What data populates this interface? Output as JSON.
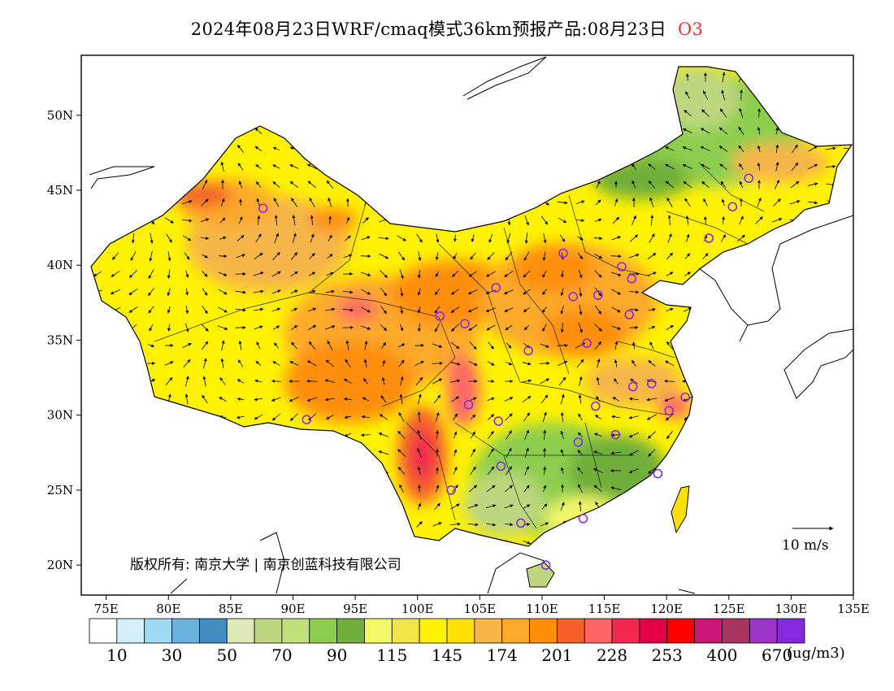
{
  "title": {
    "main": "2024年08月23日WRF/cmaq模式36km预报产品:08月23日",
    "species": "O3"
  },
  "map": {
    "lon_labels": [
      "75E",
      "80E",
      "85E",
      "90E",
      "95E",
      "100E",
      "105E",
      "110E",
      "115E",
      "120E",
      "125E",
      "130E",
      "135E"
    ],
    "lat_labels": [
      "20N",
      "25N",
      "30N",
      "35N",
      "40N",
      "45N",
      "50N"
    ],
    "lon_range": [
      73,
      135
    ],
    "lat_range": [
      18,
      54
    ],
    "copyright": "版权所有: 南京大学 | 南京创蓝科技有限公司",
    "vector_legend_label": "10  m/s",
    "background_color": "#ffffff",
    "coast_color": "#000000",
    "station_marker_color": "#8a2be2"
  },
  "colorbar": {
    "colors": [
      "#ffffff",
      "#d5effa",
      "#9fd9f4",
      "#6cb2de",
      "#418dc4",
      "#dfe9b7",
      "#bdd67f",
      "#c1e07c",
      "#8ccd4d",
      "#6fae3a",
      "#f3f868",
      "#f2e54a",
      "#fff200",
      "#ffe100",
      "#f7b548",
      "#fda92b",
      "#ff8e09",
      "#f55f2a",
      "#ff6666",
      "#f2284f",
      "#e60045",
      "#ff0000",
      "#cc1677",
      "#aa3460",
      "#9d34c9",
      "#8628e0"
    ],
    "labels": [
      "10",
      "30",
      "50",
      "70",
      "90",
      "115",
      "145",
      "174",
      "201",
      "228",
      "253",
      "400",
      "670"
    ],
    "unit": "(ug/m3)"
  },
  "stations": [
    {
      "lon": 87.6,
      "lat": 43.8
    },
    {
      "lon": 126.6,
      "lat": 45.8
    },
    {
      "lon": 125.3,
      "lat": 43.9
    },
    {
      "lon": 123.4,
      "lat": 41.8
    },
    {
      "lon": 111.7,
      "lat": 40.8
    },
    {
      "lon": 116.4,
      "lat": 39.9
    },
    {
      "lon": 117.2,
      "lat": 39.1
    },
    {
      "lon": 114.5,
      "lat": 38.0
    },
    {
      "lon": 112.5,
      "lat": 37.9
    },
    {
      "lon": 106.3,
      "lat": 38.5
    },
    {
      "lon": 101.8,
      "lat": 36.6
    },
    {
      "lon": 103.8,
      "lat": 36.1
    },
    {
      "lon": 117.0,
      "lat": 36.7
    },
    {
      "lon": 113.6,
      "lat": 34.8
    },
    {
      "lon": 108.9,
      "lat": 34.3
    },
    {
      "lon": 117.3,
      "lat": 31.9
    },
    {
      "lon": 118.8,
      "lat": 32.1
    },
    {
      "lon": 121.5,
      "lat": 31.2
    },
    {
      "lon": 120.2,
      "lat": 30.3
    },
    {
      "lon": 114.3,
      "lat": 30.6
    },
    {
      "lon": 104.1,
      "lat": 30.7
    },
    {
      "lon": 106.5,
      "lat": 29.6
    },
    {
      "lon": 91.1,
      "lat": 29.7
    },
    {
      "lon": 112.9,
      "lat": 28.2
    },
    {
      "lon": 115.9,
      "lat": 28.7
    },
    {
      "lon": 106.7,
      "lat": 26.6
    },
    {
      "lon": 102.7,
      "lat": 25.0
    },
    {
      "lon": 119.3,
      "lat": 26.1
    },
    {
      "lon": 113.3,
      "lat": 23.1
    },
    {
      "lon": 108.3,
      "lat": 22.8
    },
    {
      "lon": 110.3,
      "lat": 20.0
    }
  ]
}
